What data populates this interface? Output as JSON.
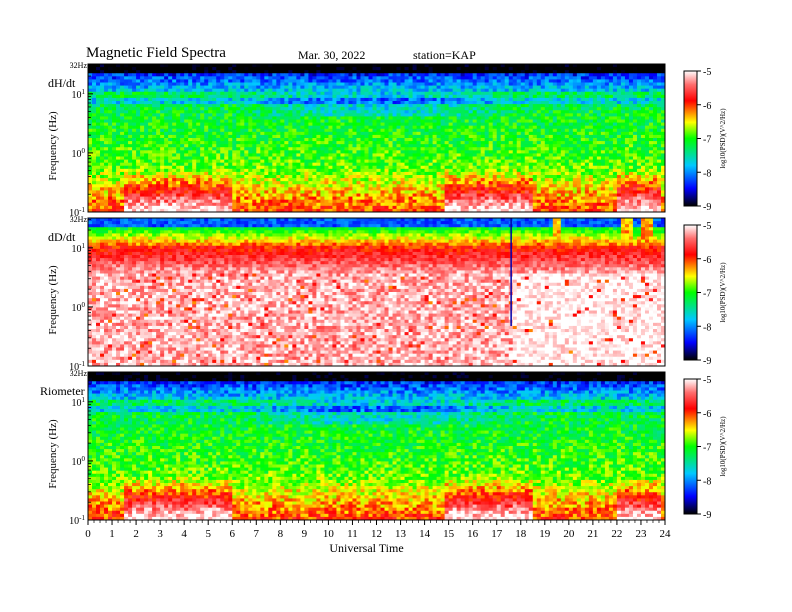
{
  "header": {
    "title": "Magnetic  Field  Spectra",
    "date": "Mar. 30, 2022",
    "station": "station=KAP"
  },
  "chart_data": {
    "type": "heatmap",
    "x_range_hours": [
      0,
      24
    ],
    "x_ticks": [
      "0",
      "1",
      "2",
      "3",
      "4",
      "5",
      "6",
      "7",
      "8",
      "9",
      "10",
      "11",
      "12",
      "13",
      "14",
      "15",
      "16",
      "17",
      "18",
      "19",
      "20",
      "21",
      "22",
      "23",
      "24"
    ],
    "xlabel": "Universal Time",
    "y_scale": "log",
    "y_range_hz": [
      0.1,
      32
    ],
    "top_frequency_label": "32Hz",
    "ylabel": "Frequency  (Hz)",
    "colorbar": {
      "range": [
        -9,
        -5
      ],
      "ticks": [
        "-5",
        "-6",
        "-7",
        "-8",
        "-9"
      ],
      "label": "log10(PSD)(V^2/Hz)"
    },
    "panels": [
      {
        "name": "dH/dt",
        "y_ticks": [
          {
            "base": "10",
            "exp": "1",
            "value": 10
          },
          {
            "base": "10",
            "exp": "0",
            "value": 1
          },
          {
            "base": "10",
            "exp": "-1",
            "value": 0.1
          }
        ],
        "features": {
          "baseline_log_psd": -7.0,
          "high_freq_floor_log_psd": -9.0,
          "line_emission_hz": 7.5,
          "low_freq_enhancement_hours": [
            [
              1.5,
              6.0
            ],
            [
              14.8,
              18.5
            ],
            [
              22.0,
              23.8
            ]
          ]
        }
      },
      {
        "name": "dD/dt",
        "y_ticks": [
          {
            "base": "10",
            "exp": "1",
            "value": 10
          },
          {
            "base": "10",
            "exp": "0",
            "value": 1
          },
          {
            "base": "10",
            "exp": "-1",
            "value": 0.1
          }
        ],
        "features": {
          "baseline_log_psd": -5.2,
          "saturation_band_hz": [
            3.0,
            8.0
          ],
          "event_spike_hour": 17.6,
          "event_bursts_hours": [
            19.5,
            22.4,
            23.2
          ]
        }
      },
      {
        "name": "Riometer",
        "y_ticks": [
          {
            "base": "10",
            "exp": "1",
            "value": 10
          },
          {
            "base": "10",
            "exp": "0",
            "value": 1
          },
          {
            "base": "10",
            "exp": "-1",
            "value": 0.1
          }
        ],
        "features": {
          "baseline_log_psd": -7.0,
          "high_freq_floor_log_psd": -9.0,
          "line_emission_hz": 7.5,
          "low_freq_enhancement_hours": [
            [
              1.5,
              6.0
            ],
            [
              14.8,
              18.5
            ],
            [
              22.0,
              23.8
            ]
          ]
        }
      }
    ]
  }
}
